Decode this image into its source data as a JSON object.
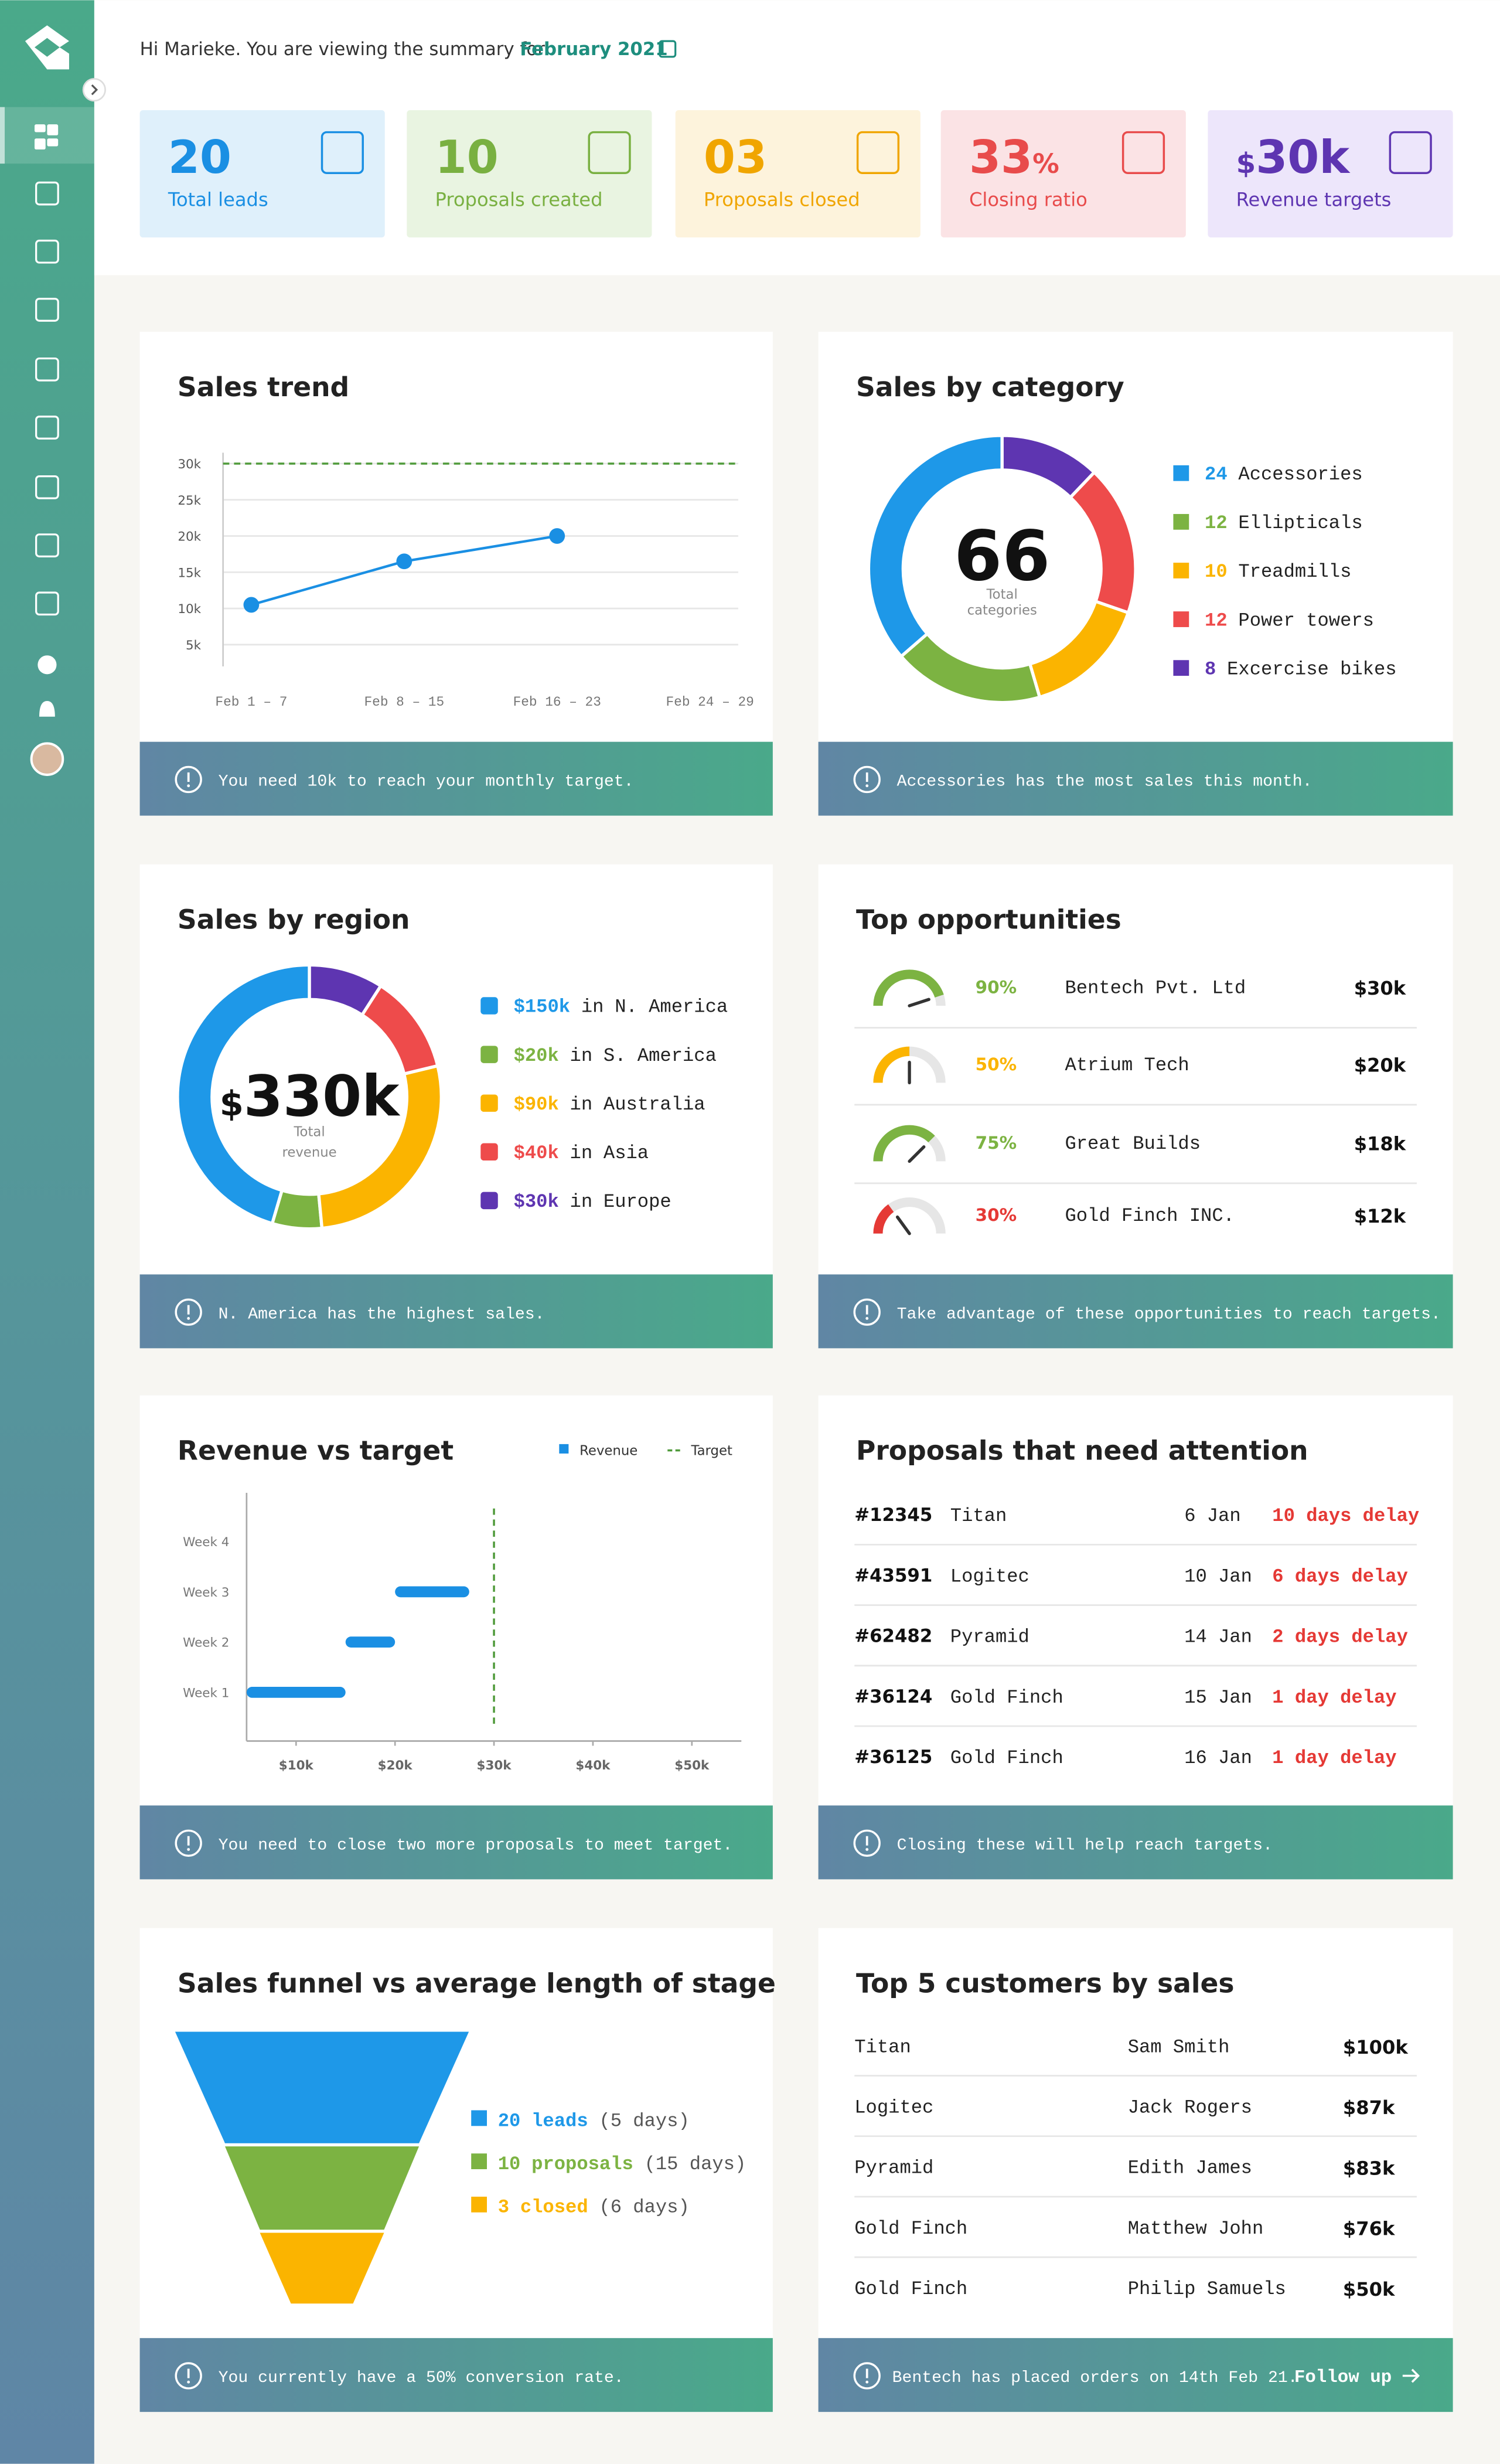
{
  "header": {
    "greeting": "Hi Marieke. You are viewing the summary for",
    "period": "February 2021"
  },
  "stats": [
    {
      "value": "20",
      "label": "Total leads"
    },
    {
      "value": "10",
      "label": "Proposals created"
    },
    {
      "value": "03",
      "label": "Proposals closed"
    },
    {
      "value": "33",
      "suffix": "%",
      "label": "Closing ratio"
    },
    {
      "prefix": "$",
      "value": "30k",
      "label": "Revenue targets"
    }
  ],
  "chart_data": [
    {
      "type": "line",
      "title": "Sales trend",
      "categories": [
        "Feb 1 – 7",
        "Feb 8 – 15",
        "Feb 16 – 23",
        "Feb 24 – 29"
      ],
      "series": [
        {
          "color": "#1a8fe3",
          "values": [
            10500,
            16500,
            20000,
            null
          ]
        }
      ],
      "target": 30000,
      "target_color": "#4f9a3a",
      "ylim": [
        2000,
        31500
      ],
      "yticks": [
        {
          "value": 5000,
          "label": "5k"
        },
        {
          "value": 10000,
          "label": "10k"
        },
        {
          "value": 15000,
          "label": "15k"
        },
        {
          "value": 20000,
          "label": "20k"
        },
        {
          "value": 25000,
          "label": "25k"
        },
        {
          "value": 30000,
          "label": "30k"
        }
      ],
      "grid": true,
      "note": "You need 10k to reach your monthly target."
    },
    {
      "type": "donut",
      "title": "Sales by category",
      "center_value": "66",
      "center_label": [
        "Total",
        "categories"
      ],
      "categories": [
        "Accessories",
        "Ellipticals",
        "Treadmills",
        "Power towers",
        "Excercise bikes"
      ],
      "values": [
        24,
        12,
        10,
        12,
        8
      ],
      "colors": [
        "#1e98e8",
        "#7cb342",
        "#fbb400",
        "#ee4b4b",
        "#5e35b1"
      ],
      "direction": "counterclockwise",
      "note": "Accessories has the most sales this month."
    },
    {
      "type": "donut",
      "title": "Sales by region",
      "center_prefix": "$",
      "center_value": "330k",
      "center_label": [
        "Total",
        "revenue"
      ],
      "connector": "in",
      "categories": [
        "N. America",
        "S. America",
        "Australia",
        "Asia",
        "Europe"
      ],
      "values": [
        150,
        20,
        90,
        40,
        30
      ],
      "value_labels": [
        "$150k",
        "$20k",
        "$90k",
        "$40k",
        "$30k"
      ],
      "colors": [
        "#1e98e8",
        "#7cb342",
        "#fbb400",
        "#ee4b4b",
        "#5e35b1"
      ],
      "direction": "counterclockwise",
      "note": "N. America has the highest sales."
    },
    {
      "type": "bar",
      "orientation": "horizontal",
      "cumulative": true,
      "title": "Revenue vs target",
      "categories": [
        "Week 1",
        "Week 2",
        "Week 3",
        "Week 4"
      ],
      "series": [
        {
          "name": "Revenue",
          "color": "#1a8fe3",
          "values": [
            10000,
            5000,
            7500,
            null
          ]
        }
      ],
      "target": {
        "name": "Target",
        "value": 30000,
        "color": "#4f9a3a"
      },
      "xlim": [
        5000,
        55000
      ],
      "xticks": [
        {
          "value": 10000,
          "label": "$10k"
        },
        {
          "value": 20000,
          "label": "$20k"
        },
        {
          "value": 30000,
          "label": "$30k"
        },
        {
          "value": 40000,
          "label": "$40k"
        },
        {
          "value": 50000,
          "label": "$50k"
        }
      ],
      "note": "You need to close two more proposals to meet target."
    },
    {
      "type": "funnel",
      "title": "Sales funnel vs average length of stage",
      "categories": [
        "leads",
        "proposals",
        "closed"
      ],
      "values": [
        20,
        10,
        3
      ],
      "durations": [
        "(5 days)",
        "(15 days)",
        "(6 days)"
      ],
      "colors": [
        "#1e98e8",
        "#7cb342",
        "#fbb400"
      ],
      "note": "You currently have a 50% conversion rate."
    }
  ],
  "opportunities": {
    "title": "Top opportunities",
    "rows": [
      {
        "percent": 90,
        "percent_label": "90%",
        "company": "Bentech Pvt. Ltd",
        "amount": "$30k",
        "color": "#7cb342"
      },
      {
        "percent": 50,
        "percent_label": "50%",
        "company": "Atrium Tech",
        "amount": "$20k",
        "color": "#fbb400"
      },
      {
        "percent": 75,
        "percent_label": "75%",
        "company": "Great Builds",
        "amount": "$18k",
        "color": "#7cb342"
      },
      {
        "percent": 30,
        "percent_label": "30%",
        "company": "Gold Finch INC.",
        "amount": "$12k",
        "color": "#e53935"
      }
    ],
    "note": "Take advantage of these opportunities to reach targets."
  },
  "proposals": {
    "title": "Proposals that need attention",
    "rows": [
      [
        "#12345",
        "Titan",
        "6 Jan",
        "10 days delay"
      ],
      [
        "#43591",
        "Logitec",
        "10 Jan",
        "6 days delay"
      ],
      [
        "#62482",
        "Pyramid",
        "14 Jan",
        "2 days delay"
      ],
      [
        "#36124",
        "Gold Finch",
        "15 Jan",
        "1 day delay"
      ],
      [
        "#36125",
        "Gold Finch",
        "16 Jan",
        "1 day delay"
      ]
    ],
    "note": "Closing these will help reach targets."
  },
  "customers": {
    "title": "Top 5 customers by sales",
    "rows": [
      [
        "Titan",
        "Sam Smith",
        "$100k"
      ],
      [
        "Logitec",
        "Jack Rogers",
        "$87k"
      ],
      [
        "Pyramid",
        "Edith James",
        "$83k"
      ],
      [
        "Gold Finch",
        "Matthew John",
        "$76k"
      ],
      [
        "Gold Finch",
        "Philip Samuels",
        "$50k"
      ]
    ],
    "note": "Bentech has placed orders on 14th Feb 21.",
    "link": "Follow up"
  }
}
